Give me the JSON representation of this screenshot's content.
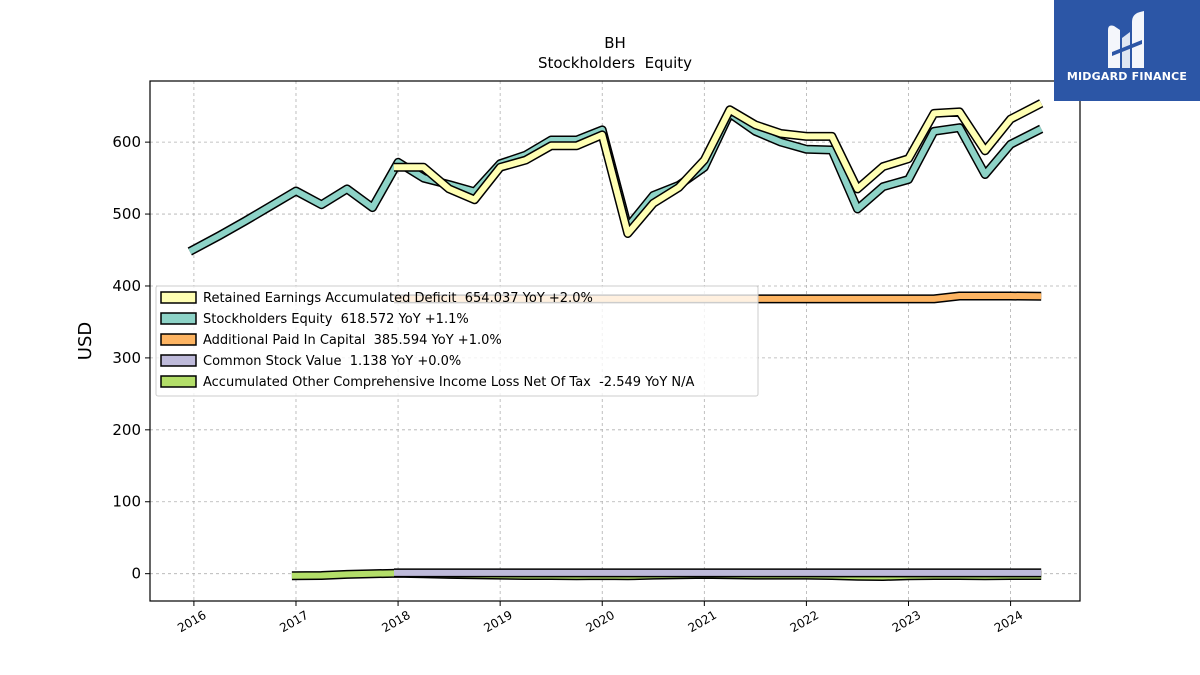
{
  "chart_data": {
    "type": "line",
    "title": "BH",
    "subtitle": "Stockholders  Equity",
    "ylabel": "USD",
    "xlabel": "",
    "ylim": [
      -38,
      685
    ],
    "xlim": [
      2015.57,
      2024.68
    ],
    "grid": true,
    "legend_position": "center-left",
    "x_ticks": [
      2016,
      2017,
      2018,
      2019,
      2020,
      2021,
      2022,
      2023,
      2024
    ],
    "x_tick_labels": [
      "2016",
      "2017",
      "2018",
      "2019",
      "2020",
      "2021",
      "2022",
      "2023",
      "2024"
    ],
    "y_ticks": [
      0,
      100,
      200,
      300,
      400,
      500,
      600
    ],
    "y_tick_labels": [
      "0",
      "100",
      "200",
      "300",
      "400",
      "500",
      "600"
    ],
    "series": [
      {
        "name": "Retained Earnings Accumulated Deficit",
        "legend_label": "Retained Earnings Accumulated Deficit  654.037 YoY +2.0%",
        "color": "#ffffb3",
        "x": [
          2017.96,
          2018.25,
          2018.5,
          2018.75,
          2019.0,
          2019.25,
          2019.5,
          2019.75,
          2020.0,
          2020.25,
          2020.5,
          2020.75,
          2021.0,
          2021.25,
          2021.5,
          2021.75,
          2022.0,
          2022.25,
          2022.5,
          2022.75,
          2023.0,
          2023.25,
          2023.5,
          2023.75,
          2024.0,
          2024.3
        ],
        "y": [
          565,
          565,
          535,
          520,
          565,
          575,
          595,
          595,
          610,
          473,
          515,
          537,
          575,
          645,
          624,
          612,
          608,
          608,
          535,
          566,
          577,
          640,
          642,
          588,
          632,
          654
        ]
      },
      {
        "name": "Stockholders Equity",
        "legend_label": "Stockholders Equity  618.572 YoY +1.1%",
        "color": "#8dd3c7",
        "x": [
          2015.96,
          2016.25,
          2016.5,
          2016.75,
          2017.0,
          2017.25,
          2017.5,
          2017.75,
          2018.0,
          2018.25,
          2018.5,
          2018.75,
          2019.0,
          2019.25,
          2019.5,
          2019.75,
          2020.0,
          2020.25,
          2020.5,
          2020.75,
          2021.0,
          2021.25,
          2021.5,
          2021.75,
          2022.0,
          2022.25,
          2022.5,
          2022.75,
          2023.0,
          2023.25,
          2023.5,
          2023.75,
          2024.0,
          2024.3
        ],
        "y": [
          448,
          470,
          490,
          511,
          532,
          513,
          535,
          509,
          572,
          550,
          541,
          531,
          570,
          582,
          603,
          603,
          617,
          482,
          526,
          540,
          565,
          640,
          615,
          600,
          590,
          589,
          507,
          538,
          548,
          615,
          620,
          555,
          597,
          618.6
        ]
      },
      {
        "name": "Additional Paid In Capital",
        "legend_label": "Additional Paid In Capital  385.594 YoY +1.0%",
        "color": "#fdb462",
        "x": [
          2017.96,
          2018.25,
          2018.5,
          2018.75,
          2019.0,
          2019.25,
          2019.5,
          2019.75,
          2020.0,
          2020.25,
          2020.5,
          2020.75,
          2021.0,
          2021.25,
          2021.5,
          2021.75,
          2022.0,
          2022.25,
          2022.5,
          2022.75,
          2023.0,
          2023.25,
          2023.5,
          2023.75,
          2024.0,
          2024.3
        ],
        "y": [
          382,
          382,
          382,
          382,
          382,
          382,
          382,
          382,
          382,
          382,
          382,
          382,
          382,
          382,
          382,
          382,
          382,
          382,
          382,
          382,
          382,
          382,
          386,
          386,
          386,
          385.6
        ]
      },
      {
        "name": "Common Stock Value",
        "legend_label": "Common Stock Value  1.138 YoY +0.0%",
        "color": "#bebada",
        "x": [
          2017.96,
          2018.5,
          2019.0,
          2019.5,
          2020.0,
          2020.5,
          2021.0,
          2021.5,
          2022.0,
          2022.5,
          2023.0,
          2023.5,
          2024.0,
          2024.3
        ],
        "y": [
          1.1,
          1.1,
          1.1,
          1.1,
          1.1,
          1.1,
          1.1,
          1.1,
          1.1,
          1.1,
          1.1,
          1.1,
          1.1,
          1.138
        ]
      },
      {
        "name": "Accumulated Other Comprehensive Income Loss Net Of Tax",
        "legend_label": "Accumulated Other Comprehensive Income Loss Net Of Tax  -2.549 YoY N/A",
        "color": "#b3de69",
        "x": [
          2016.96,
          2017.25,
          2017.5,
          2017.75,
          2018.0,
          2018.25,
          2018.5,
          2018.75,
          2019.0,
          2019.25,
          2019.5,
          2019.75,
          2020.0,
          2020.25,
          2020.5,
          2020.75,
          2021.0,
          2021.25,
          2021.5,
          2021.75,
          2022.0,
          2022.25,
          2022.5,
          2022.75,
          2023.0,
          2023.25,
          2023.5,
          2023.75,
          2024.0,
          2024.3
        ],
        "y": [
          -3,
          -2.5,
          -1,
          0,
          0.5,
          0,
          -1,
          -1.5,
          -2,
          -2.5,
          -2.5,
          -3,
          -2.5,
          -3,
          -2,
          -1.5,
          -1,
          -1.5,
          -2,
          -2,
          -2,
          -2.5,
          -3.5,
          -4,
          -3,
          -2.5,
          -2.5,
          -3,
          -2.5,
          -2.549
        ]
      }
    ]
  },
  "logo": {
    "text": "MIDGARD FINANCE",
    "icon": "midgard-logo-icon",
    "background": "#2c56a6"
  }
}
